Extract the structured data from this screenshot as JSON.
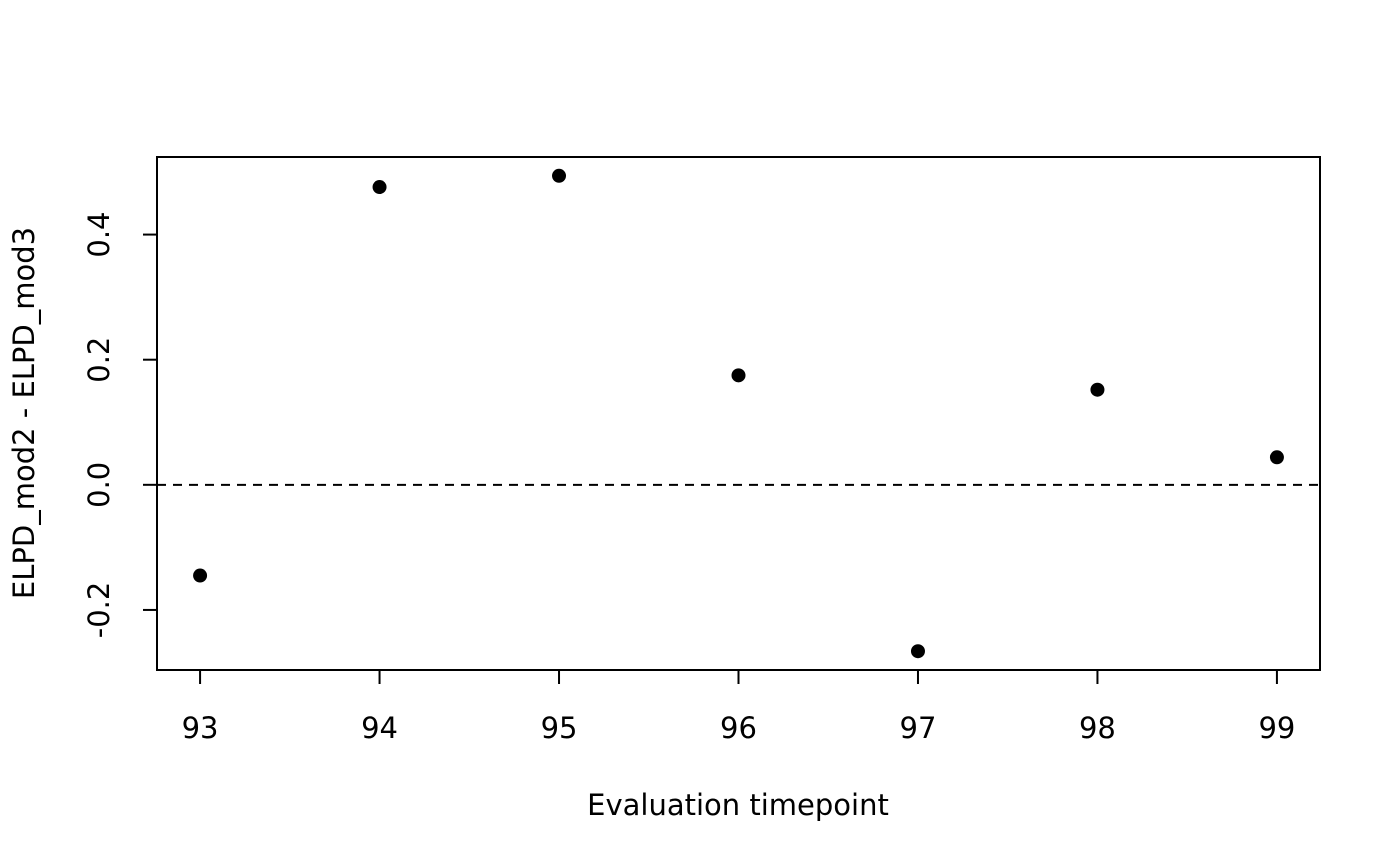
{
  "chart_data": {
    "type": "scatter",
    "title": "",
    "xlabel": "Evaluation timepoint",
    "ylabel": "ELPD_mod2 - ELPD_mod3",
    "x": [
      93,
      94,
      95,
      96,
      97,
      98,
      99
    ],
    "y": [
      -0.145,
      0.476,
      0.494,
      0.175,
      -0.266,
      0.152,
      0.044
    ],
    "xlim": [
      92.76,
      99.24
    ],
    "ylim": [
      -0.296,
      0.524
    ],
    "xticks": [
      93,
      94,
      95,
      96,
      97,
      98,
      99
    ],
    "xtick_labels": [
      "93",
      "94",
      "95",
      "96",
      "97",
      "98",
      "99"
    ],
    "yticks": [
      -0.2,
      0.0,
      0.2,
      0.4
    ],
    "ytick_labels": [
      "-0.2",
      "0.0",
      "0.2",
      "0.4"
    ],
    "reference_line": {
      "y": 0,
      "style": "dashed"
    },
    "grid": false,
    "legend": "none",
    "point_color": "#000000"
  }
}
